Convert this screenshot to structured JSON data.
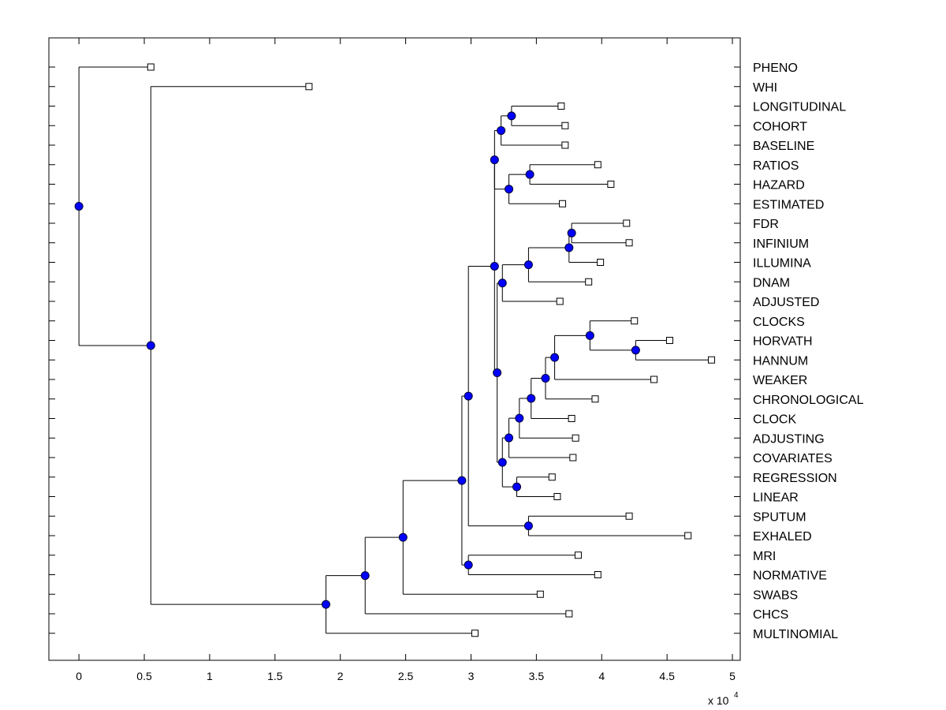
{
  "chart_data": {
    "type": "dendrogram",
    "x_axis": {
      "ticks": [
        0,
        0.5,
        1,
        1.5,
        2,
        2.5,
        3,
        3.5,
        4,
        4.5,
        5
      ],
      "tick_labels": [
        "0",
        "0.5",
        "1",
        "1.5",
        "2",
        "2.5",
        "3",
        "3.5",
        "4",
        "4.5",
        "5"
      ],
      "xlim": [
        -0.23,
        5.06
      ],
      "exponent_base": "x 10",
      "exponent_power": "4"
    },
    "leaf_labels": [
      "PHENO",
      "WHI",
      "LONGITUDINAL",
      "COHORT",
      "BASELINE",
      "RATIOS",
      "HAZARD",
      "ESTIMATED",
      "FDR",
      "INFINIUM",
      "ILLUMINA",
      "DNAM",
      "ADJUSTED",
      "CLOCKS",
      "HORVATH",
      "HANNUM",
      "WEAKER",
      "CHRONOLOGICAL",
      "CLOCK",
      "ADJUSTING",
      "COVARIATES",
      "REGRESSION",
      "LINEAR",
      "SPUTUM",
      "EXHALED",
      "MRI",
      "NORMATIVE",
      "SWABS",
      "CHCS",
      "MULTINOMIAL"
    ],
    "leaf_values": [
      0.55,
      1.76,
      3.69,
      3.72,
      3.72,
      3.97,
      4.07,
      3.7,
      4.19,
      4.21,
      3.99,
      3.9,
      3.68,
      4.25,
      4.52,
      4.84,
      4.4,
      3.95,
      3.77,
      3.8,
      3.78,
      3.62,
      3.66,
      4.21,
      4.66,
      3.82,
      3.97,
      3.53,
      3.75,
      3.03
    ],
    "internal_nodes": [
      {
        "id": "n_lon_coh",
        "x": 3.31,
        "children": [
          "L2",
          "L3"
        ]
      },
      {
        "id": "n_lcb",
        "x": 3.23,
        "children": [
          "n_lon_coh",
          "L4"
        ]
      },
      {
        "id": "n_rat_haz",
        "x": 3.45,
        "children": [
          "L5",
          "L6"
        ]
      },
      {
        "id": "n_rhe",
        "x": 3.29,
        "children": [
          "n_rat_haz",
          "L7"
        ]
      },
      {
        "id": "n_top1",
        "x": 3.18,
        "children": [
          "n_lcb",
          "n_rhe"
        ]
      },
      {
        "id": "n_fdr_inf",
        "x": 3.77,
        "children": [
          "L8",
          "L9"
        ]
      },
      {
        "id": "n_fii",
        "x": 3.75,
        "children": [
          "n_fdr_inf",
          "L10"
        ]
      },
      {
        "id": "n_fiid",
        "x": 3.44,
        "children": [
          "n_fii",
          "L11"
        ]
      },
      {
        "id": "n_fiida",
        "x": 3.24,
        "children": [
          "n_fiid",
          "L12"
        ]
      },
      {
        "id": "n_hor_han",
        "x": 4.26,
        "children": [
          "L14",
          "L15"
        ]
      },
      {
        "id": "n_chh",
        "x": 3.91,
        "children": [
          "L13",
          "n_hor_han"
        ]
      },
      {
        "id": "n_chhw",
        "x": 3.64,
        "children": [
          "n_chh",
          "L16"
        ]
      },
      {
        "id": "n_chhwc",
        "x": 3.57,
        "children": [
          "n_chhw",
          "L17"
        ]
      },
      {
        "id": "n_clock",
        "x": 3.46,
        "children": [
          "n_chhwc",
          "L18"
        ]
      },
      {
        "id": "n_adj",
        "x": 3.37,
        "children": [
          "n_clock",
          "L19"
        ]
      },
      {
        "id": "n_cov",
        "x": 3.29,
        "children": [
          "n_adj",
          "L20"
        ]
      },
      {
        "id": "n_reg_lin",
        "x": 3.35,
        "children": [
          "L21",
          "L22"
        ]
      },
      {
        "id": "n_cr",
        "x": 3.24,
        "children": [
          "n_cov",
          "n_reg_lin"
        ]
      },
      {
        "id": "n_ma",
        "x": 3.2,
        "children": [
          "n_fiida",
          "n_cr"
        ]
      },
      {
        "id": "n_mid",
        "x": 3.18,
        "children": [
          "n_top1",
          "n_ma"
        ]
      },
      {
        "id": "n_spu_exh",
        "x": 3.44,
        "children": [
          "L23",
          "L24"
        ]
      },
      {
        "id": "n_mse",
        "x": 2.98,
        "children": [
          "n_mid",
          "n_spu_exh"
        ]
      },
      {
        "id": "n_mri_norm",
        "x": 2.98,
        "children": [
          "L25",
          "L26"
        ]
      },
      {
        "id": "n_big",
        "x": 2.93,
        "children": [
          "n_mse",
          "n_mri_norm"
        ]
      },
      {
        "id": "n_swab",
        "x": 2.48,
        "children": [
          "n_big",
          "L27"
        ]
      },
      {
        "id": "n_chcs",
        "x": 2.19,
        "children": [
          "n_swab",
          "L28"
        ]
      },
      {
        "id": "n_multi",
        "x": 1.89,
        "children": [
          "n_chcs",
          "L29"
        ]
      },
      {
        "id": "n_whi",
        "x": 0.55,
        "children": [
          "L1",
          "n_multi"
        ]
      },
      {
        "id": "n_root",
        "x": 0.0,
        "children": [
          "L0",
          "n_whi"
        ]
      }
    ],
    "colors": {
      "node_fill": "#0000ff",
      "node_stroke": "#000033",
      "line": "#000000",
      "leaf_fill": "#ffffff",
      "leaf_stroke": "#000000"
    }
  }
}
